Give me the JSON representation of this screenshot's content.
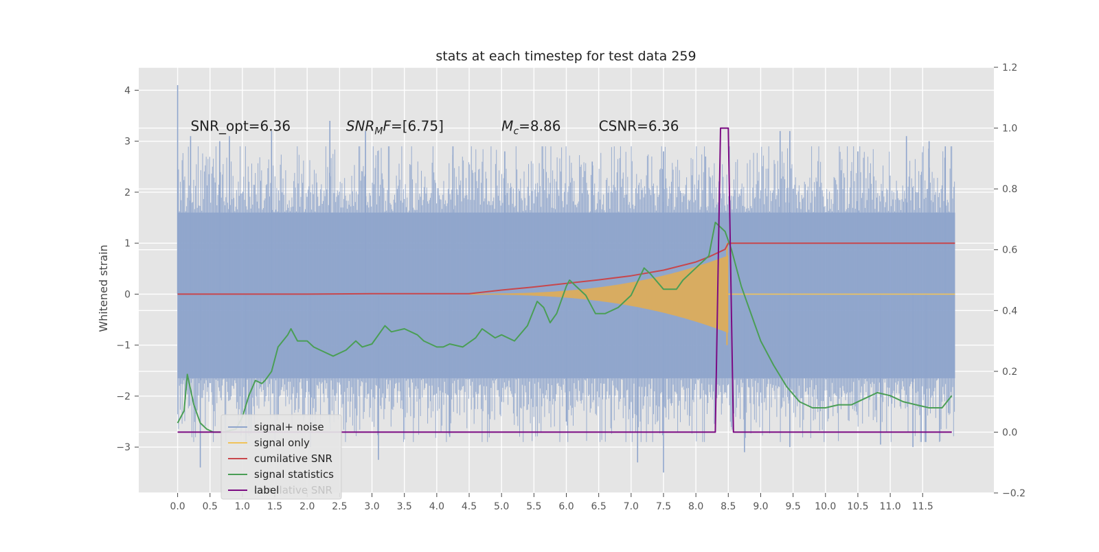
{
  "chart_data": {
    "type": "line",
    "title": "stats at each timestep for test data 259",
    "ylabel": "Whitened strain",
    "xlabel": "",
    "xlim": [
      -0.6,
      12.6
    ],
    "ylim": [
      -3.9,
      4.45
    ],
    "y2lim": [
      -0.2,
      1.2
    ],
    "grid": true,
    "x_ticks": [
      0.0,
      0.5,
      1.0,
      1.5,
      2.0,
      2.5,
      3.0,
      3.5,
      4.0,
      4.5,
      5.0,
      5.5,
      6.0,
      6.5,
      7.0,
      7.5,
      8.0,
      8.5,
      9.0,
      9.5,
      10.0,
      10.5,
      11.0,
      11.5
    ],
    "x_tick_labels": [
      "0.0",
      "0.5",
      "1.0",
      "1.5",
      "2.0",
      "2.5",
      "3.0",
      "3.5",
      "4.0",
      "4.5",
      "5.0",
      "5.5",
      "6.0",
      "6.5",
      "7.0",
      "7.5",
      "8.0",
      "8.5",
      "9.0",
      "9.5",
      "10.0",
      "10.5",
      "11.0",
      "11.5"
    ],
    "y_ticks": [
      -3,
      -2,
      -1,
      0,
      1,
      2,
      3,
      4
    ],
    "y_tick_labels": [
      "−3",
      "−2",
      "−1",
      "0",
      "1",
      "2",
      "3",
      "4"
    ],
    "y2_ticks": [
      -0.2,
      0.0,
      0.2,
      0.4,
      0.6,
      0.8,
      1.0,
      1.2
    ],
    "y2_tick_labels": [
      "−0.2",
      "0.0",
      "0.2",
      "0.4",
      "0.6",
      "0.8",
      "1.0",
      "1.2"
    ],
    "annotations": [
      {
        "name": "snr-opt",
        "x": 0.2,
        "y": 3.3,
        "html": "SNR_opt=6.36",
        "text": "SNR_opt=6.36"
      },
      {
        "name": "snr-mf",
        "x": 2.6,
        "y": 3.3,
        "html": "<tspan font-style='italic'>SNR</tspan><tspan font-style='italic' font-size='14' dy='5'>M</tspan><tspan font-style='italic' dy='-5'>F</tspan>=[6.75]",
        "text": "SNR_MF=[6.75]"
      },
      {
        "name": "chirp-mass",
        "x": 5.0,
        "y": 3.3,
        "html": "<tspan font-style='italic'>M</tspan><tspan font-style='italic' font-size='14' dy='5'>c</tspan><tspan dy='-5'>=8.86</tspan>",
        "text": "M_c=8.86"
      },
      {
        "name": "csnr",
        "x": 6.5,
        "y": 3.3,
        "html": "CSNR=6.36",
        "text": "CSNR=6.36"
      }
    ],
    "legend": {
      "placement": "lower-left",
      "entries": [
        {
          "label": "signal+ noise",
          "color": "#8fa5cc"
        },
        {
          "label": "signal only",
          "color": "#f0c35a"
        },
        {
          "label": "cumilative SNR",
          "color": "#c8464b"
        },
        {
          "label": "signal statistics",
          "color": "#4a9e55"
        },
        {
          "label": "label",
          "color": "#7b0a82"
        }
      ],
      "ghost_label": "cumilative SNR"
    },
    "series": [
      {
        "name": "signal+ noise",
        "axis": "left",
        "style": "noise",
        "color": "#8fa5cc",
        "x_range": [
          0.0,
          12.0
        ],
        "band_low": -1.65,
        "band_high": 1.6,
        "peaks_high": [
          [
            0.0,
            4.1
          ],
          [
            0.2,
            3.1
          ],
          [
            0.65,
            3.0
          ],
          [
            0.8,
            3.1
          ],
          [
            1.45,
            3.2
          ],
          [
            2.35,
            3.4
          ],
          [
            2.9,
            3.2
          ],
          [
            4.25,
            2.9
          ],
          [
            5.05,
            2.8
          ],
          [
            6.4,
            2.6
          ],
          [
            7.5,
            2.8
          ],
          [
            8.15,
            2.7
          ],
          [
            9.3,
            3.2
          ],
          [
            9.45,
            3.2
          ],
          [
            10.5,
            2.8
          ],
          [
            11.25,
            3.1
          ],
          [
            11.6,
            3.0
          ],
          [
            11.85,
            2.9
          ]
        ],
        "peaks_low": [
          [
            0.35,
            -3.4
          ],
          [
            1.05,
            -2.9
          ],
          [
            2.05,
            -3.0
          ],
          [
            3.1,
            -3.25
          ],
          [
            4.2,
            -2.8
          ],
          [
            6.0,
            -2.5
          ],
          [
            7.1,
            -3.3
          ],
          [
            7.5,
            -3.5
          ],
          [
            8.3,
            -2.7
          ],
          [
            8.75,
            -3.1
          ],
          [
            9.45,
            -3.0
          ],
          [
            10.85,
            -2.95
          ],
          [
            11.35,
            -3.0
          ],
          [
            11.55,
            -2.9
          ]
        ]
      },
      {
        "name": "signal only",
        "axis": "left",
        "style": "chirp",
        "color": "#f0c35a",
        "chirp_start": 4.5,
        "chirp_end": 8.5,
        "peak_amplitude": 1.0,
        "values_after": 0.0
      },
      {
        "name": "cumilative SNR",
        "axis": "left",
        "color": "#c8464b",
        "x": [
          0.0,
          1.0,
          2.0,
          3.0,
          4.0,
          4.5,
          5.0,
          5.5,
          6.0,
          6.5,
          7.0,
          7.5,
          8.0,
          8.2,
          8.45,
          8.5,
          9.0,
          10.0,
          11.0,
          12.0
        ],
        "values": [
          0.0,
          0.0,
          0.0,
          0.01,
          0.01,
          0.01,
          0.08,
          0.14,
          0.21,
          0.28,
          0.36,
          0.47,
          0.63,
          0.73,
          0.88,
          1.0,
          1.0,
          1.0,
          1.0,
          1.0
        ]
      },
      {
        "name": "signal statistics",
        "axis": "right",
        "color": "#4a9e55",
        "x": [
          0.0,
          0.1,
          0.15,
          0.25,
          0.35,
          0.45,
          0.55,
          0.7,
          0.9,
          1.0,
          1.1,
          1.2,
          1.3,
          1.35,
          1.45,
          1.55,
          1.7,
          1.75,
          1.85,
          2.0,
          2.1,
          2.2,
          2.4,
          2.6,
          2.75,
          2.85,
          3.0,
          3.2,
          3.3,
          3.5,
          3.7,
          3.8,
          4.0,
          4.1,
          4.2,
          4.4,
          4.6,
          4.7,
          4.9,
          5.0,
          5.2,
          5.4,
          5.55,
          5.65,
          5.75,
          5.85,
          6.0,
          6.05,
          6.15,
          6.3,
          6.45,
          6.6,
          6.8,
          7.0,
          7.2,
          7.3,
          7.5,
          7.6,
          7.7,
          7.8,
          8.0,
          8.1,
          8.2,
          8.3,
          8.45,
          8.55,
          8.7,
          8.9,
          9.0,
          9.2,
          9.4,
          9.6,
          9.8,
          10.0,
          10.2,
          10.4,
          10.6,
          10.8,
          11.0,
          11.2,
          11.4,
          11.6,
          11.8,
          11.95
        ],
        "values": [
          0.03,
          0.07,
          0.19,
          0.09,
          0.03,
          0.01,
          0.0,
          0.0,
          0.01,
          0.05,
          0.12,
          0.17,
          0.16,
          0.17,
          0.2,
          0.28,
          0.32,
          0.34,
          0.3,
          0.3,
          0.28,
          0.27,
          0.25,
          0.27,
          0.3,
          0.28,
          0.29,
          0.35,
          0.33,
          0.34,
          0.32,
          0.3,
          0.28,
          0.28,
          0.29,
          0.28,
          0.31,
          0.34,
          0.31,
          0.32,
          0.3,
          0.35,
          0.43,
          0.41,
          0.36,
          0.39,
          0.48,
          0.5,
          0.48,
          0.45,
          0.39,
          0.39,
          0.41,
          0.45,
          0.54,
          0.52,
          0.47,
          0.47,
          0.47,
          0.5,
          0.54,
          0.56,
          0.58,
          0.69,
          0.66,
          0.6,
          0.48,
          0.36,
          0.3,
          0.22,
          0.15,
          0.1,
          0.08,
          0.08,
          0.09,
          0.09,
          0.11,
          0.13,
          0.12,
          0.1,
          0.09,
          0.08,
          0.08,
          0.12
        ]
      },
      {
        "name": "label",
        "axis": "right",
        "color": "#7b0a82",
        "x": [
          0.0,
          8.3,
          8.38,
          8.5,
          8.58,
          11.95
        ],
        "values": [
          0.0,
          0.0,
          1.0,
          1.0,
          0.0,
          0.0
        ]
      }
    ]
  }
}
